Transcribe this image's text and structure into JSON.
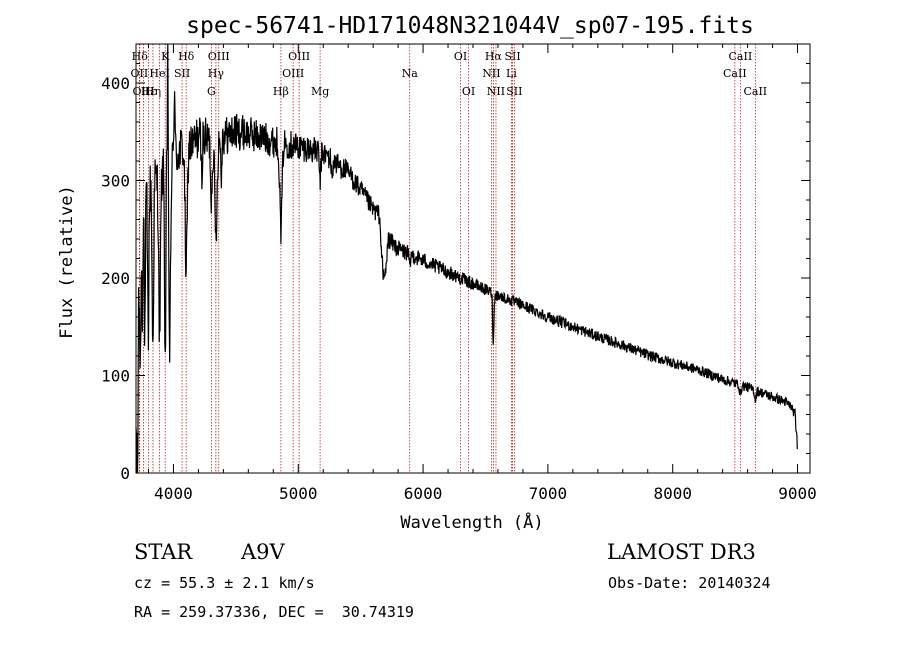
{
  "chart_data": {
    "type": "line",
    "title": "spec-56741-HD171048N321044V_sp07-195.fits",
    "xlabel": "Wavelength (Å)",
    "ylabel": "Flux (relative)",
    "xlim": [
      3700,
      9100
    ],
    "ylim": [
      0,
      440
    ],
    "xticks": [
      4000,
      5000,
      6000,
      7000,
      8000,
      9000
    ],
    "yticks": [
      0,
      100,
      200,
      300,
      400
    ],
    "grid": false,
    "line_color": "#000000",
    "marker_color": "#b22222",
    "lines": [
      {
        "label": "Hδ",
        "wave": 3730,
        "row": 0
      },
      {
        "label": "OII",
        "wave": 3727,
        "row": 1
      },
      {
        "label": "OIII",
        "wave": 3760,
        "row": 2
      },
      {
        "label": "Hε",
        "wave": 3800,
        "row": 2
      },
      {
        "label": "Hη",
        "wave": 3836,
        "row": 2
      },
      {
        "label": "K",
        "wave": 3934,
        "row": 0
      },
      {
        "label": "HeI",
        "wave": 3889,
        "row": 1
      },
      {
        "label": "SII",
        "wave": 4069,
        "row": 1
      },
      {
        "label": "Hδ",
        "wave": 4102,
        "row": 0
      },
      {
        "label": "OIII",
        "wave": 4363,
        "row": 0
      },
      {
        "label": "Hγ",
        "wave": 4340,
        "row": 1
      },
      {
        "label": "G",
        "wave": 4304,
        "row": 2
      },
      {
        "label": "Hβ",
        "wave": 4861,
        "row": 2
      },
      {
        "label": "OIII",
        "wave": 5007,
        "row": 0
      },
      {
        "label": "OIII",
        "wave": 4959,
        "row": 1
      },
      {
        "label": "Mg",
        "wave": 5175,
        "row": 2
      },
      {
        "label": "Na",
        "wave": 5893,
        "row": 1
      },
      {
        "label": "OI",
        "wave": 6300,
        "row": 0
      },
      {
        "label": "OI",
        "wave": 6364,
        "row": 2
      },
      {
        "label": "Hα",
        "wave": 6563,
        "row": 0
      },
      {
        "label": "NII",
        "wave": 6548,
        "row": 1
      },
      {
        "label": "NII",
        "wave": 6584,
        "row": 2
      },
      {
        "label": "SII",
        "wave": 6717,
        "row": 0
      },
      {
        "label": "Li",
        "wave": 6708,
        "row": 1
      },
      {
        "label": "SII",
        "wave": 6731,
        "row": 2
      },
      {
        "label": "CaII",
        "wave": 8542,
        "row": 0
      },
      {
        "label": "CaII",
        "wave": 8498,
        "row": 1
      },
      {
        "label": "CaII",
        "wave": 8662,
        "row": 2
      }
    ],
    "continuum": {
      "x": [
        3700,
        3720,
        3740,
        3760,
        3800,
        3850,
        3900,
        3950,
        4000,
        4050,
        4100,
        4150,
        4200,
        4300,
        4400,
        4500,
        4600,
        4700,
        4800,
        4900,
        5000,
        5100,
        5200,
        5300,
        5400,
        5500,
        5600,
        5650,
        5680,
        5700,
        5720,
        5800,
        6000,
        6200,
        6400,
        6600,
        6800,
        7000,
        7200,
        7400,
        7600,
        7800,
        8000,
        8200,
        8400,
        8600,
        8800,
        8900,
        8950,
        8980,
        8995,
        9000
      ],
      "y": [
        20,
        160,
        245,
        270,
        290,
        300,
        305,
        315,
        320,
        330,
        340,
        335,
        345,
        340,
        345,
        350,
        348,
        345,
        340,
        338,
        335,
        332,
        328,
        318,
        308,
        290,
        270,
        265,
        200,
        205,
        240,
        230,
        218,
        206,
        194,
        182,
        172,
        160,
        150,
        140,
        131,
        121,
        113,
        106,
        96,
        88,
        78,
        73,
        68,
        60,
        35,
        10
      ]
    },
    "absorption": [
      {
        "x": 3712,
        "depth": 180,
        "width": 3
      },
      {
        "x": 3735,
        "depth": 120,
        "width": 4
      },
      {
        "x": 3750,
        "depth": 100,
        "width": 4
      },
      {
        "x": 3771,
        "depth": 140,
        "width": 4
      },
      {
        "x": 3798,
        "depth": 150,
        "width": 5
      },
      {
        "x": 3835,
        "depth": 170,
        "width": 6
      },
      {
        "x": 3889,
        "depth": 160,
        "width": 7
      },
      {
        "x": 3934,
        "depth": 200,
        "width": 5
      },
      {
        "x": 3970,
        "depth": 190,
        "width": 7
      },
      {
        "x": 4102,
        "depth": 130,
        "width": 9
      },
      {
        "x": 4226,
        "depth": 40,
        "width": 4
      },
      {
        "x": 4304,
        "depth": 60,
        "width": 6
      },
      {
        "x": 4340,
        "depth": 100,
        "width": 9
      },
      {
        "x": 4383,
        "depth": 40,
        "width": 4
      },
      {
        "x": 4861,
        "depth": 90,
        "width": 9
      },
      {
        "x": 5175,
        "depth": 30,
        "width": 6
      },
      {
        "x": 5270,
        "depth": 20,
        "width": 5
      },
      {
        "x": 5893,
        "depth": 15,
        "width": 5
      },
      {
        "x": 6563,
        "depth": 50,
        "width": 5
      },
      {
        "x": 8542,
        "depth": 10,
        "width": 6
      },
      {
        "x": 8662,
        "depth": 10,
        "width": 6
      }
    ],
    "emission": [
      {
        "x": 3955,
        "height": 160,
        "width": 3
      },
      {
        "x": 4008,
        "height": 80,
        "width": 4
      }
    ],
    "noise_amplitude": [
      {
        "x": 3700,
        "amp": 30
      },
      {
        "x": 4600,
        "amp": 18
      },
      {
        "x": 5600,
        "amp": 10
      },
      {
        "x": 6500,
        "amp": 6
      },
      {
        "x": 9000,
        "amp": 5
      }
    ]
  },
  "info": {
    "object_class": "STAR",
    "subclass": "A9V",
    "survey": "LAMOST DR3",
    "redshift": "cz = 55.3 ± 2.1 km/s",
    "obs_date": "Obs-Date: 20140324",
    "coords": "RA = 259.37336, DEC =  30.74319"
  }
}
